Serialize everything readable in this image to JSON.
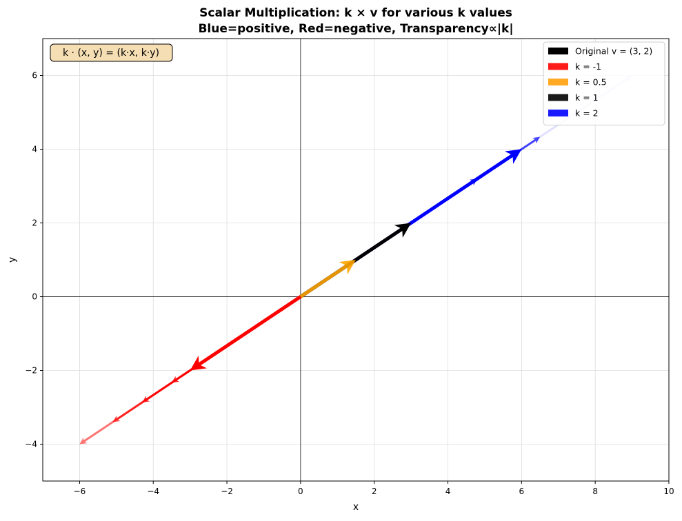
{
  "chart_data": {
    "type": "quiver",
    "title": "Scalar Multiplication: k × v for various k values",
    "subtitle": "Blue=positive, Red=negative, Transparency∝|k|",
    "xlabel": "x",
    "ylabel": "y",
    "xlim": [
      -7,
      10
    ],
    "ylim": [
      -5,
      7
    ],
    "xticks": [
      -6,
      -4,
      -2,
      0,
      2,
      4,
      6,
      8,
      10
    ],
    "xtick_labels": [
      "−6",
      "−4",
      "−2",
      "0",
      "2",
      "4",
      "6",
      "8",
      "10"
    ],
    "yticks": [
      -4,
      -2,
      0,
      2,
      4,
      6
    ],
    "ytick_labels": [
      "−4",
      "−2",
      "0",
      "2",
      "4",
      "6"
    ],
    "grid": true,
    "annotation": "k · (x, y) = (k·x, k·y)",
    "legend_position": "top-right",
    "legend": [
      {
        "label": "Original v = (3, 2)",
        "color": "#000000"
      },
      {
        "label": "k = -1",
        "color": "#ff1a1a"
      },
      {
        "label": "k = 0.5",
        "color": "#ffaa22"
      },
      {
        "label": "k = 1",
        "color": "#1a1a1a"
      },
      {
        "label": "k = 2",
        "color": "#1a1aff"
      }
    ],
    "vectors": [
      {
        "name": "k = 2",
        "color": "#0000ff",
        "opacity": 0.12,
        "start": [
          0,
          0
        ],
        "end": [
          9,
          6
        ]
      },
      {
        "name": "k = 2",
        "color": "#0000ff",
        "opacity": 0.7,
        "start": [
          0,
          0
        ],
        "end": [
          6.5,
          4.333
        ]
      },
      {
        "name": "k = 2",
        "color": "#0000ff",
        "opacity": 0.9,
        "start": [
          0,
          0
        ],
        "end": [
          4.8,
          3.2
        ]
      },
      {
        "name": "k = -1",
        "color": "#ff0000",
        "opacity": 0.55,
        "start": [
          0,
          0
        ],
        "end": [
          -6,
          -4
        ]
      },
      {
        "name": "k = -1",
        "color": "#ff0000",
        "opacity": 0.7,
        "start": [
          0,
          0
        ],
        "end": [
          -5.1,
          -3.4
        ]
      },
      {
        "name": "k = -1",
        "color": "#ff0000",
        "opacity": 0.8,
        "start": [
          0,
          0
        ],
        "end": [
          -4.3,
          -2.867
        ]
      },
      {
        "name": "k = -1",
        "color": "#ff0000",
        "opacity": 0.85,
        "start": [
          0,
          0
        ],
        "end": [
          -3.5,
          -2.333
        ]
      },
      {
        "name": "k = 2",
        "color": "#0000ff",
        "opacity": 1.0,
        "start": [
          0,
          0
        ],
        "end": [
          6,
          4
        ]
      },
      {
        "name": "k = -1",
        "color": "#ff0000",
        "opacity": 1.0,
        "start": [
          0,
          0
        ],
        "end": [
          -3,
          -2
        ]
      },
      {
        "name": "Original v = (3, 2)",
        "color": "#000000",
        "opacity": 1.0,
        "start": [
          0,
          0
        ],
        "end": [
          3,
          2
        ]
      },
      {
        "name": "k = 0.5",
        "color": "#ffa500",
        "opacity": 0.9,
        "start": [
          0,
          0
        ],
        "end": [
          1.5,
          1
        ]
      }
    ]
  }
}
